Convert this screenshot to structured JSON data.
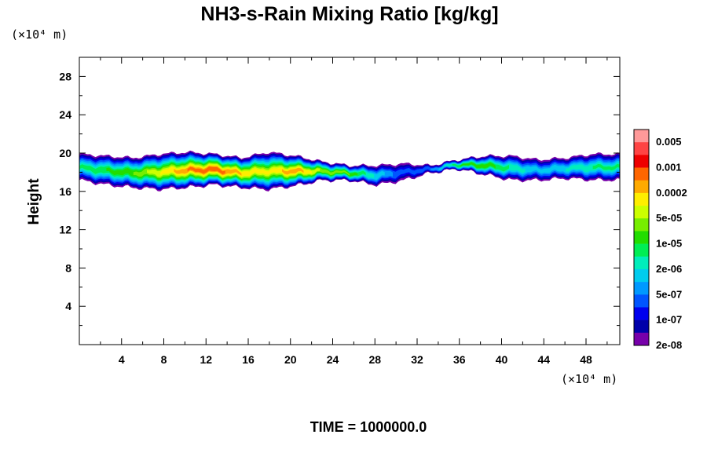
{
  "chart_data": {
    "type": "heatmap",
    "title": "NH3-s-Rain Mixing Ratio [kg/kg]",
    "xlabel": "",
    "ylabel": "Height",
    "x_unit": "(×10⁴ m)",
    "y_unit": "(×10⁴ m)",
    "xlim": [
      0,
      51.2
    ],
    "ylim": [
      0,
      30
    ],
    "xticks": [
      4,
      8,
      12,
      16,
      20,
      24,
      28,
      32,
      36,
      40,
      44,
      48
    ],
    "yticks": [
      4,
      8,
      12,
      16,
      20,
      24,
      28
    ],
    "grid": false,
    "time_label": "TIME = 1000000.0",
    "colorbar": {
      "placement": "right",
      "labels": [
        "0.005",
        "0.001",
        "0.0002",
        "5e-05",
        "1e-05",
        "2e-06",
        "5e-07",
        "1e-07",
        "2e-08"
      ],
      "colors": [
        "#ff9999",
        "#ff4444",
        "#ee0000",
        "#ff6600",
        "#ffaa00",
        "#ffee00",
        "#ccff00",
        "#77ee00",
        "#22dd00",
        "#00ee55",
        "#00eebb",
        "#00ccee",
        "#0099ff",
        "#0055ff",
        "#0000ee",
        "#0000aa",
        "#7700aa"
      ]
    },
    "field": {
      "description_level_index": "0 = 2e-08 band (purple) ... 16 = top band",
      "layer_base": [
        17.0,
        16.5,
        16.2,
        16.0,
        16.2,
        16.5,
        16.2,
        16.0,
        16.4,
        17.0,
        17.0,
        16.5,
        17.0,
        17.8,
        18.2,
        17.6,
        17.0,
        17.0,
        17.2,
        17.0
      ],
      "layer_top": [
        19.8,
        19.6,
        19.4,
        19.8,
        20.0,
        19.8,
        19.4,
        20.0,
        19.6,
        19.0,
        18.6,
        18.6,
        18.8,
        18.6,
        19.2,
        19.6,
        19.6,
        19.2,
        19.4,
        19.8
      ],
      "segment_x": [
        0,
        2.56,
        5.12,
        7.68,
        10.24,
        12.8,
        15.36,
        17.92,
        20.48,
        23.04,
        25.6,
        28.16,
        30.72,
        33.28,
        35.84,
        38.4,
        40.96,
        43.52,
        46.08,
        48.64
      ],
      "core_peak_level": [
        7,
        8,
        9,
        11,
        13,
        14,
        12,
        11,
        13,
        10,
        9,
        6,
        3,
        4,
        8,
        9,
        7,
        5,
        6,
        7
      ]
    }
  }
}
